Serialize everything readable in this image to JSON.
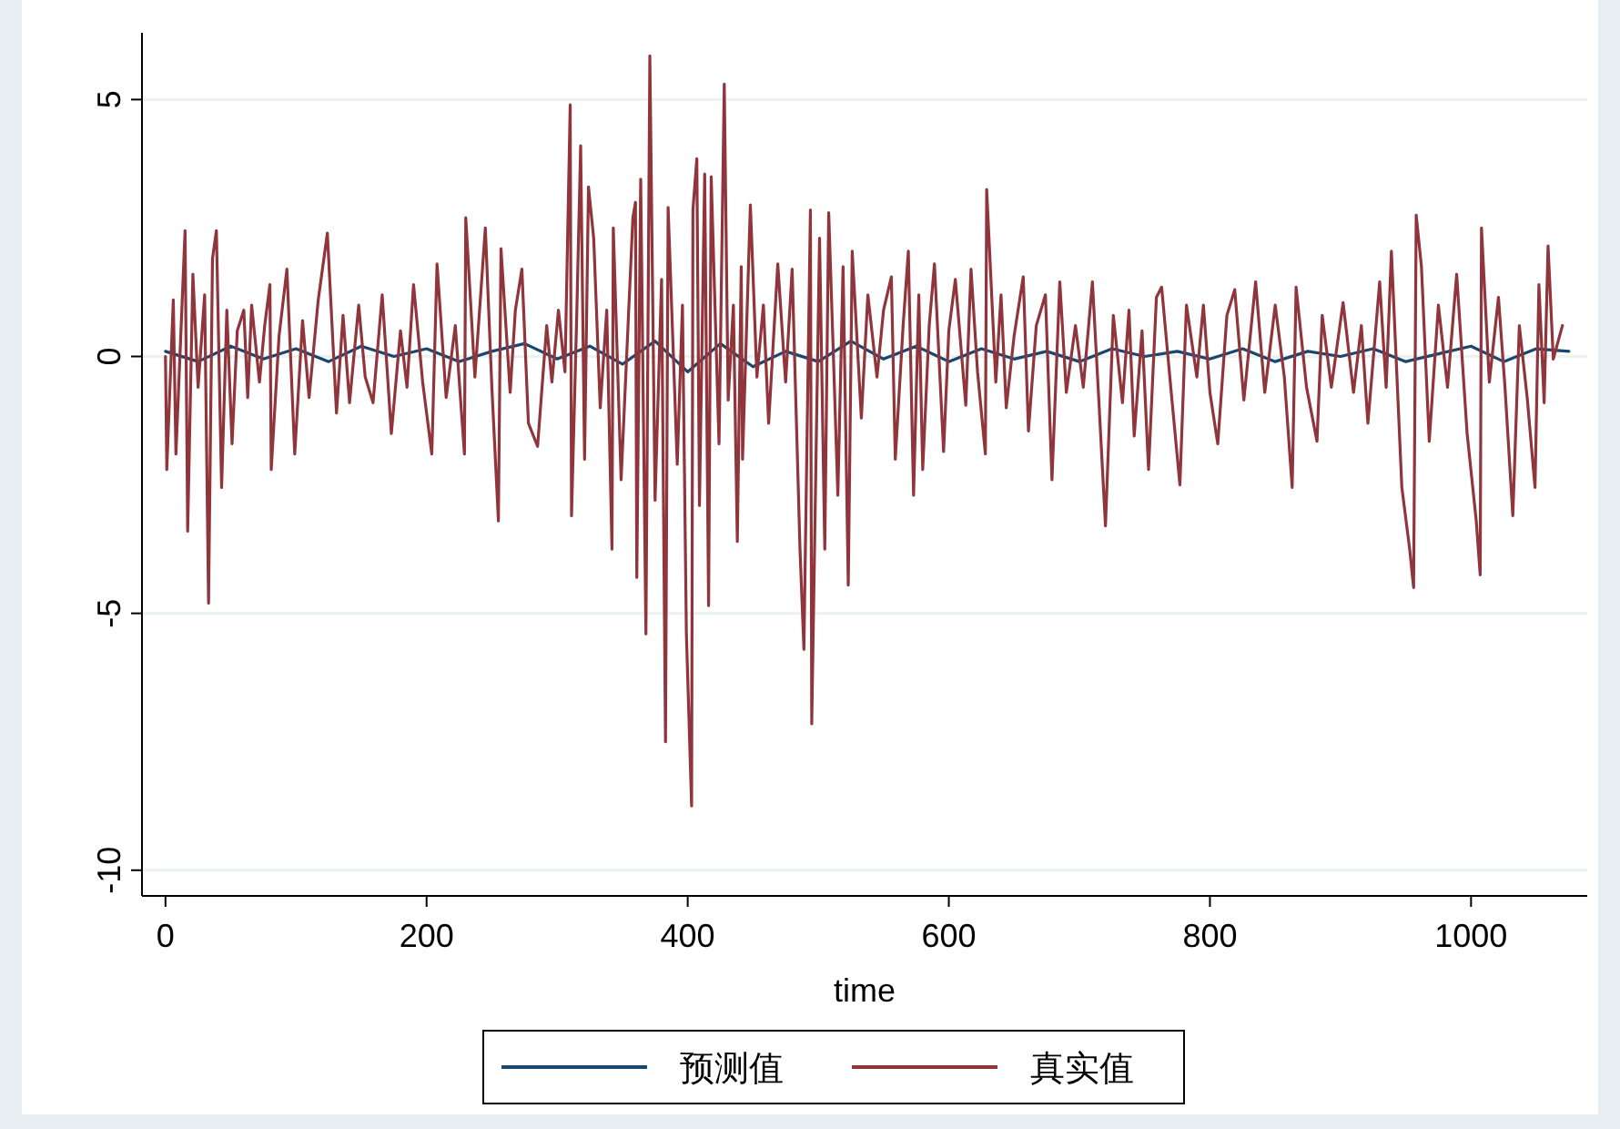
{
  "chart_data": {
    "type": "line",
    "xlabel": "time",
    "xlim": [
      -18,
      1089
    ],
    "xticks": [
      0,
      200,
      400,
      600,
      800,
      1000
    ],
    "ylim": [
      -10.5,
      6.3
    ],
    "yticks": [
      -10,
      -5,
      0,
      5
    ],
    "grid": "y",
    "legend": "bottom",
    "marker": "none",
    "line_style": "solid",
    "series": [
      {
        "name": "预测值",
        "color": "#1a476f",
        "x": [
          0,
          25,
          50,
          75,
          100,
          125,
          150,
          175,
          200,
          225,
          250,
          275,
          300,
          325,
          350,
          375,
          400,
          425,
          450,
          475,
          500,
          525,
          550,
          575,
          600,
          625,
          650,
          675,
          700,
          725,
          750,
          775,
          800,
          825,
          850,
          875,
          900,
          925,
          950,
          975,
          1000,
          1025,
          1050,
          1075
        ],
        "values": [
          0.1,
          -0.1,
          0.2,
          -0.05,
          0.15,
          -0.1,
          0.2,
          0.0,
          0.15,
          -0.1,
          0.1,
          0.25,
          -0.05,
          0.2,
          -0.15,
          0.3,
          -0.3,
          0.25,
          -0.2,
          0.1,
          -0.1,
          0.3,
          -0.05,
          0.2,
          -0.1,
          0.15,
          -0.05,
          0.1,
          -0.1,
          0.15,
          0.0,
          0.1,
          -0.05,
          0.15,
          -0.1,
          0.1,
          0.0,
          0.15,
          -0.1,
          0.05,
          0.2,
          -0.1,
          0.15,
          0.1
        ]
      },
      {
        "name": "真实值",
        "color": "#90353b",
        "x": [
          0,
          1,
          6,
          8,
          15,
          17,
          21,
          25,
          30,
          33,
          36,
          39,
          43,
          47,
          51,
          55,
          60,
          63,
          66,
          72,
          76,
          80,
          81,
          87,
          93,
          99,
          105,
          110,
          117,
          124,
          131,
          136,
          141,
          148,
          153,
          159,
          166,
          173,
          180,
          185,
          190,
          197,
          204,
          208,
          215,
          222,
          229,
          230,
          237,
          245,
          250,
          255,
          257,
          264,
          268,
          273,
          278,
          285,
          292,
          296,
          301,
          306,
          310,
          311,
          315,
          318,
          321,
          324,
          328,
          333,
          338,
          342,
          343,
          349,
          358,
          360,
          361,
          364,
          368,
          371,
          375,
          380,
          383,
          385,
          392,
          396,
          399,
          403,
          404,
          407,
          409,
          413,
          416,
          418,
          424,
          428,
          431,
          435,
          438,
          441,
          442,
          448,
          453,
          458,
          462,
          469,
          475,
          480,
          486,
          489,
          494,
          495,
          501,
          505,
          508,
          512,
          515,
          519,
          523,
          526,
          533,
          538,
          545,
          550,
          556,
          559,
          565,
          569,
          573,
          577,
          580,
          585,
          589,
          596,
          600,
          605,
          613,
          617,
          622,
          628,
          629,
          636,
          640,
          644,
          650,
          657,
          661,
          667,
          674,
          679,
          685,
          690,
          697,
          703,
          710,
          715,
          720,
          726,
          733,
          738,
          742,
          748,
          753,
          759,
          763,
          770,
          777,
          782,
          790,
          795,
          800,
          806,
          813,
          819,
          826,
          835,
          842,
          850,
          857,
          863,
          866,
          874,
          882,
          886,
          893,
          902,
          910,
          916,
          921,
          930,
          935,
          939,
          947,
          953,
          956,
          958,
          962,
          968,
          975,
          982,
          989,
          997,
          1004,
          1007,
          1008,
          1014,
          1021,
          1026,
          1032,
          1037,
          1043,
          1049,
          1052,
          1056,
          1059,
          1063,
          1070
        ],
        "values": [
          0,
          -2.2,
          1.1,
          -1.9,
          2.45,
          -3.4,
          1.6,
          -0.6,
          1.2,
          -4.8,
          1.9,
          2.45,
          -2.55,
          0.9,
          -1.7,
          0.5,
          0.9,
          -0.8,
          1.0,
          -0.5,
          0.6,
          1.4,
          -2.2,
          0.4,
          1.7,
          -1.9,
          0.7,
          -0.8,
          1.1,
          2.4,
          -1.1,
          0.8,
          -0.9,
          1.0,
          -0.4,
          -0.9,
          1.2,
          -1.5,
          0.5,
          -0.6,
          1.4,
          -0.5,
          -1.9,
          1.8,
          -0.8,
          0.6,
          -1.9,
          2.7,
          -0.4,
          2.5,
          -0.6,
          -3.2,
          2.1,
          -0.7,
          0.9,
          1.7,
          -1.3,
          -1.75,
          0.6,
          -0.5,
          0.9,
          -0.3,
          4.9,
          -3.1,
          0.8,
          4.1,
          -2.0,
          3.3,
          2.3,
          -1.0,
          0.9,
          -3.75,
          2.5,
          -2.4,
          2.7,
          3.0,
          -4.3,
          3.45,
          -5.4,
          5.85,
          -2.8,
          1.5,
          -7.5,
          2.9,
          -2.1,
          1.0,
          -5.4,
          -8.75,
          2.85,
          3.85,
          -2.9,
          3.55,
          -4.85,
          3.5,
          -1.7,
          5.3,
          -0.85,
          1.0,
          -3.6,
          1.75,
          -2.0,
          2.95,
          -0.4,
          1.0,
          -1.3,
          1.8,
          -0.5,
          1.7,
          -3.75,
          -5.7,
          2.85,
          -7.15,
          2.3,
          -3.75,
          2.8,
          -0.3,
          -2.7,
          1.75,
          -4.45,
          2.05,
          -1.2,
          1.2,
          -0.4,
          0.9,
          1.55,
          -2.0,
          0.6,
          2.05,
          -2.7,
          1.2,
          -2.2,
          0.6,
          1.8,
          -1.85,
          0.5,
          1.5,
          -0.95,
          1.7,
          -0.3,
          -1.9,
          3.25,
          -0.5,
          1.2,
          -1.0,
          0.4,
          1.55,
          -1.45,
          0.6,
          1.2,
          -2.4,
          1.45,
          -0.7,
          0.6,
          -0.6,
          1.45,
          -0.9,
          -3.3,
          0.8,
          -0.9,
          0.9,
          -1.55,
          0.5,
          -2.2,
          1.15,
          1.35,
          -0.6,
          -2.5,
          1.0,
          -0.4,
          1.0,
          -0.7,
          -1.7,
          0.8,
          1.3,
          -0.85,
          1.45,
          -0.7,
          1.0,
          -0.4,
          -2.55,
          1.35,
          -0.6,
          -1.65,
          0.8,
          -0.6,
          1.05,
          -0.7,
          0.6,
          -1.3,
          1.45,
          -0.6,
          2.05,
          -2.55,
          -3.75,
          -4.5,
          2.75,
          1.75,
          -1.65,
          1.0,
          -0.6,
          1.6,
          -1.5,
          -3.2,
          -4.25,
          2.5,
          -0.5,
          1.15,
          -0.6,
          -3.1,
          0.6,
          -0.8,
          -2.55,
          1.4,
          -0.9,
          2.15,
          -0.05,
          0.6
        ]
      }
    ]
  }
}
